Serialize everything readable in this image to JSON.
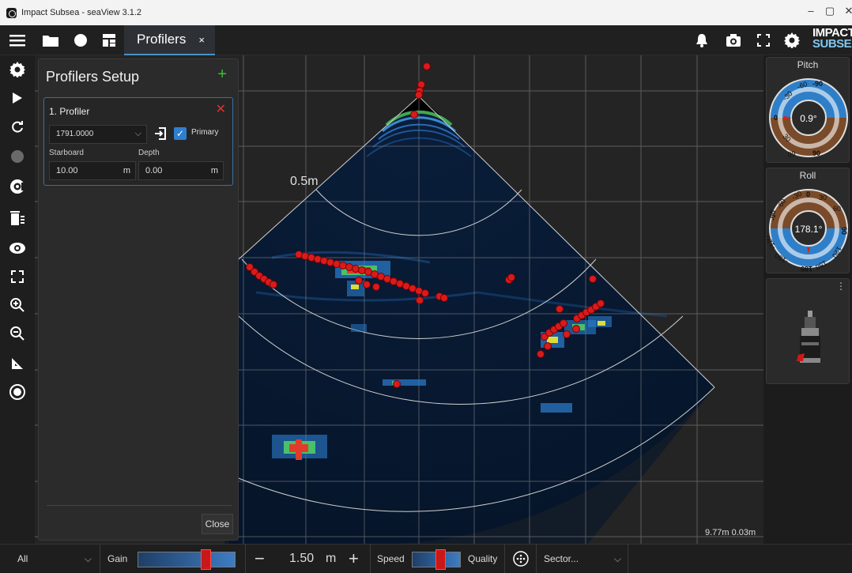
{
  "window": {
    "title": "Impact Subsea - seaView 3.1.2",
    "controls": [
      "–",
      "▢",
      "✕"
    ]
  },
  "toolbar": {
    "tab_label": "Profilers",
    "tab_close": "×",
    "logo_line1": "IMPACT",
    "logo_line2": "SUBSEA",
    "icons": [
      "menu-icon",
      "folder-icon",
      "record-icon",
      "layout-icon",
      "bell-icon",
      "camera-icon",
      "fullscreen-icon",
      "gear-icon"
    ]
  },
  "rail_icons": [
    "gear-icon",
    "play-icon",
    "refresh-icon",
    "record-icon",
    "target-icon",
    "clear-icon",
    "eye-icon",
    "expand-icon",
    "zoom-in-icon",
    "zoom-out-icon",
    "measure-icon",
    "record-circle-icon"
  ],
  "panel": {
    "title": "Profilers Setup",
    "add": "+",
    "profiler": {
      "name": "1. Profiler",
      "remove": "✕",
      "device": "1791.0000",
      "primary_label": "Primary",
      "primary_checked": true,
      "starboard_label": "Starboard",
      "starboard_value": "10.00",
      "starboard_unit": "m",
      "depth_label": "Depth",
      "depth_value": "0.00",
      "depth_unit": "m"
    },
    "close_label": "Close"
  },
  "sonar": {
    "range_label": "0.5m",
    "readout": "9.77m 0.03m"
  },
  "gauges": {
    "pitch": {
      "label": "Pitch",
      "value": "0.9°",
      "ticks": [
        "-90",
        "-60",
        "-30",
        "0",
        "30",
        "60",
        "90"
      ]
    },
    "roll": {
      "label": "Roll",
      "value": "178.1°",
      "ticks": [
        "0",
        "30",
        "60",
        "90",
        "120",
        "150",
        "180",
        "-150",
        "-120",
        "-90",
        "-60",
        "-30"
      ]
    }
  },
  "bottom": {
    "filter": "All",
    "gain_label": "Gain",
    "gain_level": 0.72,
    "range_minus": "−",
    "range_value": "1.50",
    "range_unit": "m",
    "range_plus": "+",
    "speed_label": "Speed",
    "speed_level": 0.5,
    "quality_label": "Quality",
    "mode": "Sector..."
  }
}
